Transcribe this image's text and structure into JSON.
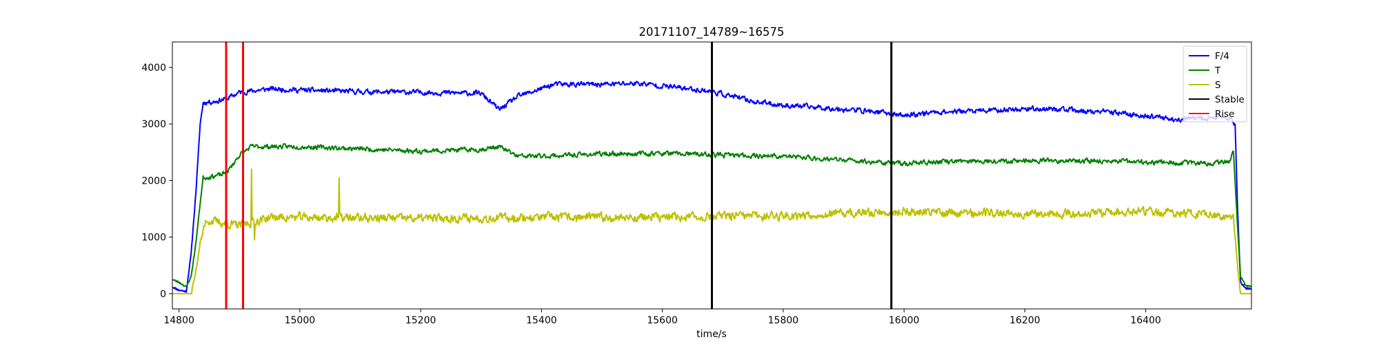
{
  "chart_data": {
    "type": "line",
    "title": "20171107_14789~16575",
    "xlabel": "time/s",
    "ylabel": "",
    "xlim": [
      14789,
      16575
    ],
    "ylim": [
      -270,
      4450
    ],
    "xticks": [
      14800,
      15000,
      15200,
      15400,
      15600,
      15800,
      16000,
      16200,
      16400
    ],
    "yticks": [
      0,
      1000,
      2000,
      3000,
      4000
    ],
    "grid": false,
    "legend_position": "top-right",
    "series": [
      {
        "name": "F/4",
        "color": "#0000ff",
        "anchors": [
          [
            14789,
            120
          ],
          [
            14800,
            60
          ],
          [
            14812,
            40
          ],
          [
            14820,
            700
          ],
          [
            14828,
            1800
          ],
          [
            14835,
            3000
          ],
          [
            14840,
            3380
          ],
          [
            14860,
            3400
          ],
          [
            14880,
            3450
          ],
          [
            14900,
            3560
          ],
          [
            14950,
            3620
          ],
          [
            15000,
            3600
          ],
          [
            15100,
            3570
          ],
          [
            15200,
            3560
          ],
          [
            15300,
            3540
          ],
          [
            15330,
            3250
          ],
          [
            15360,
            3480
          ],
          [
            15420,
            3700
          ],
          [
            15500,
            3700
          ],
          [
            15560,
            3720
          ],
          [
            15620,
            3650
          ],
          [
            15680,
            3580
          ],
          [
            15750,
            3400
          ],
          [
            15800,
            3330
          ],
          [
            15850,
            3300
          ],
          [
            15900,
            3260
          ],
          [
            15950,
            3220
          ],
          [
            16000,
            3150
          ],
          [
            16050,
            3210
          ],
          [
            16150,
            3240
          ],
          [
            16200,
            3270
          ],
          [
            16260,
            3260
          ],
          [
            16300,
            3220
          ],
          [
            16350,
            3200
          ],
          [
            16400,
            3140
          ],
          [
            16450,
            3080
          ],
          [
            16500,
            3100
          ],
          [
            16540,
            3120
          ],
          [
            16548,
            3000
          ],
          [
            16552,
            1500
          ],
          [
            16557,
            200
          ],
          [
            16565,
            100
          ],
          [
            16575,
            80
          ]
        ],
        "noise": 70,
        "seed": 11
      },
      {
        "name": "T",
        "color": "#008000",
        "anchors": [
          [
            14789,
            250
          ],
          [
            14800,
            200
          ],
          [
            14812,
            120
          ],
          [
            14820,
            300
          ],
          [
            14828,
            900
          ],
          [
            14835,
            1600
          ],
          [
            14840,
            2050
          ],
          [
            14870,
            2100
          ],
          [
            14880,
            2150
          ],
          [
            14900,
            2450
          ],
          [
            14920,
            2600
          ],
          [
            15000,
            2600
          ],
          [
            15200,
            2520
          ],
          [
            15300,
            2550
          ],
          [
            15330,
            2600
          ],
          [
            15360,
            2430
          ],
          [
            15400,
            2430
          ],
          [
            15500,
            2470
          ],
          [
            15600,
            2480
          ],
          [
            15700,
            2450
          ],
          [
            15800,
            2430
          ],
          [
            15900,
            2360
          ],
          [
            16000,
            2300
          ],
          [
            16050,
            2330
          ],
          [
            16150,
            2350
          ],
          [
            16300,
            2350
          ],
          [
            16500,
            2300
          ],
          [
            16540,
            2350
          ],
          [
            16545,
            2550
          ],
          [
            16552,
            1200
          ],
          [
            16557,
            300
          ],
          [
            16565,
            150
          ],
          [
            16575,
            120
          ]
        ],
        "noise": 65,
        "seed": 23
      },
      {
        "name": "S",
        "color": "#bfbf00",
        "anchors": [
          [
            14789,
            0
          ],
          [
            14820,
            0
          ],
          [
            14828,
            400
          ],
          [
            14835,
            900
          ],
          [
            14845,
            1300
          ],
          [
            14900,
            1200
          ],
          [
            14950,
            1350
          ],
          [
            15000,
            1350
          ],
          [
            15200,
            1330
          ],
          [
            15400,
            1350
          ],
          [
            15600,
            1350
          ],
          [
            15800,
            1380
          ],
          [
            16000,
            1450
          ],
          [
            16100,
            1430
          ],
          [
            16300,
            1420
          ],
          [
            16400,
            1450
          ],
          [
            16500,
            1400
          ],
          [
            16545,
            1350
          ],
          [
            16552,
            500
          ],
          [
            16557,
            0
          ],
          [
            16575,
            0
          ]
        ],
        "noise": 120,
        "seed": 37,
        "spikes": [
          [
            14920,
            2200
          ],
          [
            14925,
            950
          ],
          [
            15065,
            2050
          ],
          [
            15060,
            1300
          ]
        ]
      }
    ],
    "vlines": [
      {
        "name": "Stable",
        "color": "#000000",
        "x": [
          15682,
          15979
        ]
      },
      {
        "name": "Rise",
        "color": "#ff0000",
        "x": [
          14878,
          14906
        ]
      }
    ],
    "legend": [
      {
        "label": "F/4",
        "color": "#0000ff"
      },
      {
        "label": "T",
        "color": "#008000"
      },
      {
        "label": "S",
        "color": "#bfbf00"
      },
      {
        "label": "Stable",
        "color": "#000000"
      },
      {
        "label": "Rise",
        "color": "#ff0000"
      }
    ]
  }
}
